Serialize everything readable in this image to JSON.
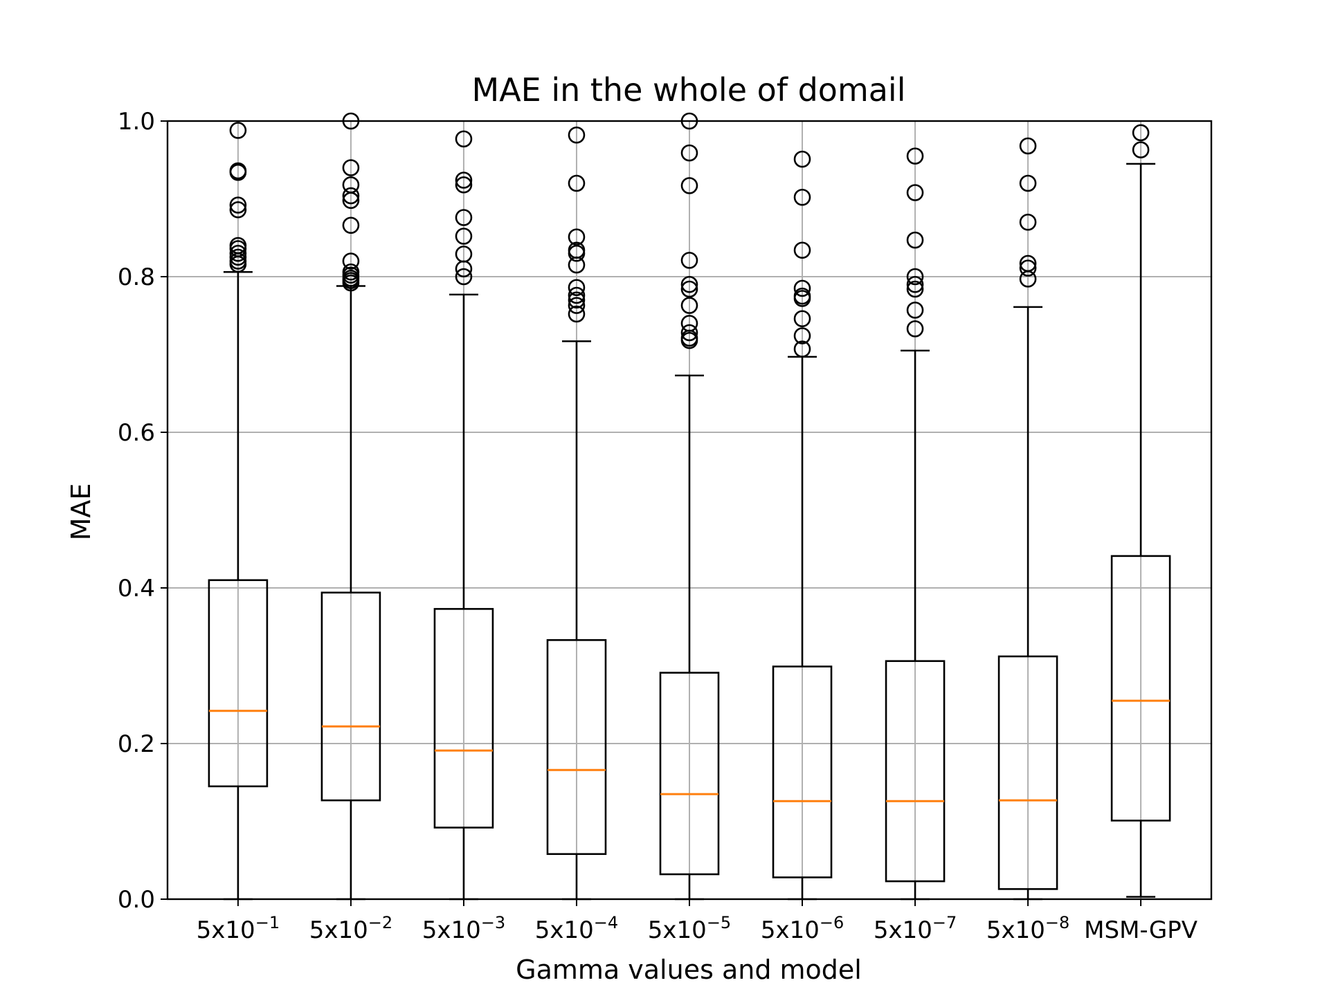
{
  "chart_data": {
    "type": "box",
    "title": "MAE in the whole of domail",
    "xlabel": "Gamma values and model",
    "ylabel": "MAE",
    "ylim": [
      0.0,
      1.0
    ],
    "yticks": [
      "0.0",
      "0.2",
      "0.4",
      "0.6",
      "0.8",
      "1.0"
    ],
    "grid": true,
    "categories": [
      {
        "base": "5x10",
        "exp": "−1"
      },
      {
        "base": "5x10",
        "exp": "−2"
      },
      {
        "base": "5x10",
        "exp": "−3"
      },
      {
        "base": "5x10",
        "exp": "−4"
      },
      {
        "base": "5x10",
        "exp": "−5"
      },
      {
        "base": "5x10",
        "exp": "−6"
      },
      {
        "base": "5x10",
        "exp": "−7"
      },
      {
        "base": "5x10",
        "exp": "−8"
      },
      {
        "base": "MSM-GPV",
        "exp": ""
      }
    ],
    "boxes": [
      {
        "whislo": 0.0,
        "q1": 0.145,
        "median": 0.242,
        "q3": 0.41,
        "whishi": 0.806,
        "fliers": [
          0.988,
          0.936,
          0.934,
          0.892,
          0.886,
          0.84,
          0.836,
          0.83,
          0.825,
          0.82,
          0.816
        ]
      },
      {
        "whislo": 0.0,
        "q1": 0.127,
        "median": 0.222,
        "q3": 0.394,
        "whishi": 0.788,
        "fliers": [
          1.0,
          0.94,
          0.918,
          0.904,
          0.898,
          0.866,
          0.82,
          0.806,
          0.802,
          0.798,
          0.795,
          0.792
        ]
      },
      {
        "whislo": 0.0,
        "q1": 0.092,
        "median": 0.191,
        "q3": 0.373,
        "whishi": 0.777,
        "fliers": [
          0.977,
          0.924,
          0.918,
          0.876,
          0.852,
          0.829,
          0.81,
          0.8
        ]
      },
      {
        "whislo": 0.0,
        "q1": 0.058,
        "median": 0.166,
        "q3": 0.333,
        "whishi": 0.717,
        "fliers": [
          0.982,
          0.92,
          0.851,
          0.834,
          0.83,
          0.815,
          0.786,
          0.776,
          0.77,
          0.763,
          0.752
        ]
      },
      {
        "whislo": 0.0,
        "q1": 0.032,
        "median": 0.135,
        "q3": 0.291,
        "whishi": 0.673,
        "fliers": [
          1.0,
          0.959,
          0.917,
          0.821,
          0.79,
          0.784,
          0.763,
          0.74,
          0.728,
          0.721,
          0.718
        ]
      },
      {
        "whislo": 0.0,
        "q1": 0.028,
        "median": 0.126,
        "q3": 0.299,
        "whishi": 0.697,
        "fliers": [
          0.951,
          0.902,
          0.834,
          0.785,
          0.775,
          0.772,
          0.746,
          0.724,
          0.707
        ]
      },
      {
        "whislo": 0.0,
        "q1": 0.023,
        "median": 0.126,
        "q3": 0.306,
        "whishi": 0.705,
        "fliers": [
          0.955,
          0.908,
          0.847,
          0.8,
          0.79,
          0.784,
          0.757,
          0.733
        ]
      },
      {
        "whislo": 0.0,
        "q1": 0.013,
        "median": 0.127,
        "q3": 0.312,
        "whishi": 0.761,
        "fliers": [
          0.968,
          0.92,
          0.87,
          0.817,
          0.811,
          0.797
        ]
      },
      {
        "whislo": 0.003,
        "q1": 0.101,
        "median": 0.255,
        "q3": 0.441,
        "whishi": 0.945,
        "fliers": [
          0.985,
          0.963
        ]
      }
    ],
    "colors": {
      "box": "#000000",
      "median": "#ff7f0e",
      "grid": "#b0b0b0",
      "frame": "#000000"
    }
  }
}
